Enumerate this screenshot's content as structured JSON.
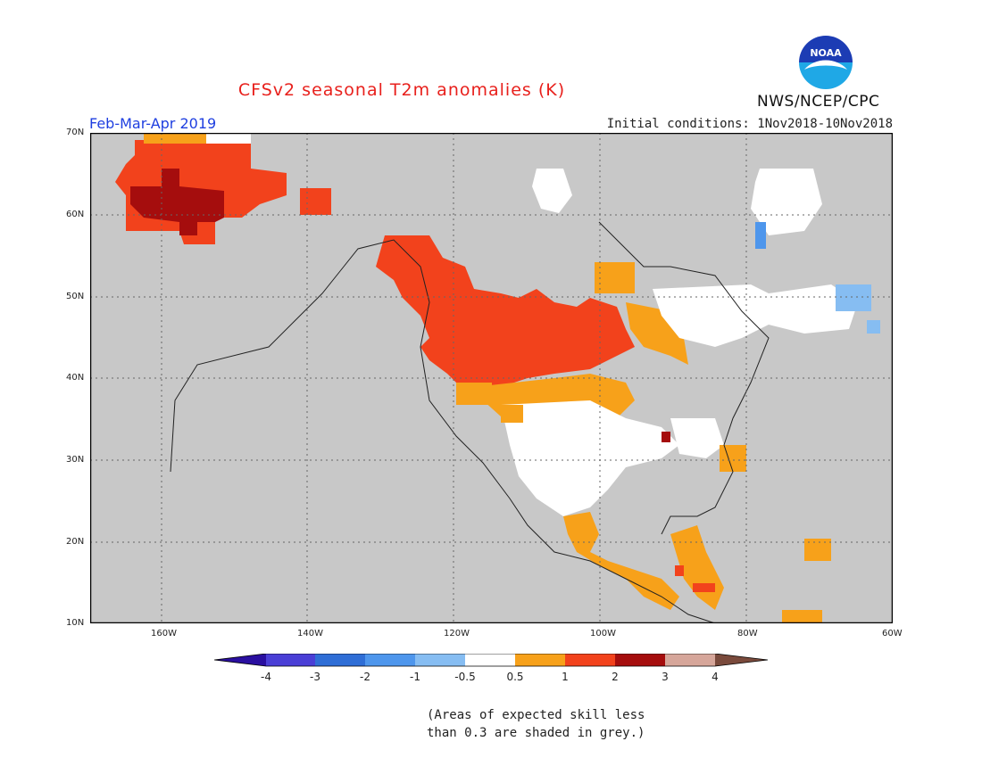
{
  "title": "CFSv2 seasonal T2m anomalies (K)",
  "season": "Feb-Mar-Apr 2019",
  "initial_conditions": "Initial conditions: 1Nov2018-10Nov2018",
  "agency": "NWS/NCEP/CPC",
  "logo_text": "NOAA",
  "note_line1": "(Areas of expected skill less",
  "note_line2": "than 0.3 are shaded in grey.)",
  "lat_labels": [
    "70N",
    "60N",
    "50N",
    "40N",
    "30N",
    "20N",
    "10N"
  ],
  "lon_labels": [
    "160W",
    "140W",
    "120W",
    "100W",
    "80W",
    "60W"
  ],
  "colorbar": {
    "labels": [
      "-4",
      "-3",
      "-2",
      "-1",
      "-0.5",
      "0.5",
      "1",
      "2",
      "3",
      "4"
    ],
    "colors": [
      "#2a0fa0",
      "#4a3fd6",
      "#2f6ed6",
      "#4e96ec",
      "#86bdf2",
      "#ffffff",
      "#f7a11a",
      "#f2421c",
      "#a50d0d",
      "#d6a69a",
      "#7a4a3c"
    ]
  },
  "colors": {
    "skill_grey": "#c8c8c8",
    "title_red": "#e8201c",
    "season_blue": "#1f3fe0"
  }
}
